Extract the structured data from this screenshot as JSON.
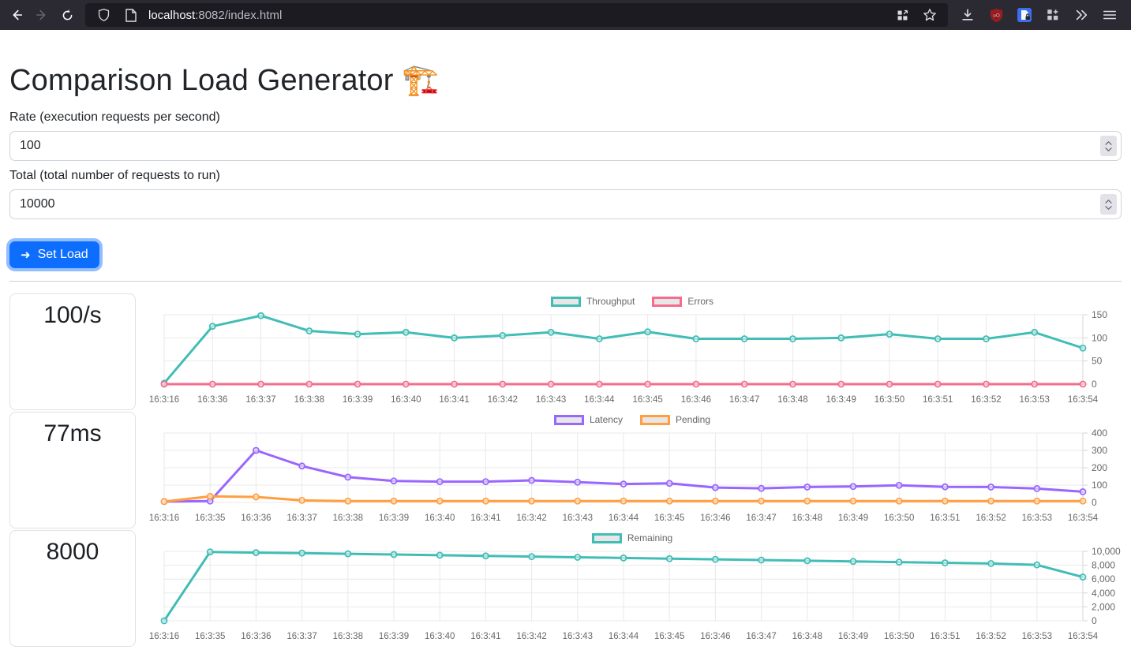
{
  "browser": {
    "url": {
      "host": "localhost",
      "rest": ":8082/index.html"
    }
  },
  "page": {
    "title": "Comparison Load Generator",
    "title_emoji": "🏗️",
    "form": {
      "rate_label": "Rate (execution requests per second)",
      "rate_value": "100",
      "total_label": "Total (total number of requests to run)",
      "total_value": "10000",
      "submit_label": "Set Load",
      "submit_icon": "➜"
    }
  },
  "stats": [
    {
      "value": "100/s"
    },
    {
      "value": "77ms"
    },
    {
      "value": "8000"
    }
  ],
  "chart_data": [
    {
      "type": "line",
      "title": "",
      "legend_position": "top",
      "grid": true,
      "x": [
        "16:3:16",
        "16:3:36",
        "16:3:37",
        "16:3:38",
        "16:3:39",
        "16:3:40",
        "16:3:41",
        "16:3:42",
        "16:3:43",
        "16:3:44",
        "16:3:45",
        "16:3:46",
        "16:3:47",
        "16:3:48",
        "16:3:49",
        "16:3:50",
        "16:3:51",
        "16:3:52",
        "16:3:53",
        "16:3:54"
      ],
      "ylim": [
        0,
        150
      ],
      "yticks": [
        {
          "v": 0,
          "label": "0"
        },
        {
          "v": 50,
          "label": "50"
        },
        {
          "v": 100,
          "label": "100"
        },
        {
          "v": 150,
          "label": "150"
        }
      ],
      "series": [
        {
          "name": "Throughput",
          "color": "#41bdb6",
          "values": [
            2,
            125,
            148,
            115,
            108,
            112,
            100,
            105,
            112,
            98,
            113,
            98,
            98,
            98,
            100,
            108,
            98,
            98,
            112,
            78
          ]
        },
        {
          "name": "Errors",
          "color": "#f56c8d",
          "values": [
            0,
            0,
            0,
            0,
            0,
            0,
            0,
            0,
            0,
            0,
            0,
            0,
            0,
            0,
            0,
            0,
            0,
            0,
            0,
            0
          ]
        }
      ]
    },
    {
      "type": "line",
      "title": "",
      "legend_position": "top",
      "grid": true,
      "x": [
        "16:3:16",
        "16:3:35",
        "16:3:36",
        "16:3:37",
        "16:3:38",
        "16:3:39",
        "16:3:40",
        "16:3:41",
        "16:3:42",
        "16:3:43",
        "16:3:44",
        "16:3:45",
        "16:3:46",
        "16:3:47",
        "16:3:48",
        "16:3:49",
        "16:3:50",
        "16:3:51",
        "16:3:52",
        "16:3:53",
        "16:3:54"
      ],
      "ylim": [
        0,
        400
      ],
      "yticks": [
        {
          "v": 0,
          "label": "0"
        },
        {
          "v": 100,
          "label": "100"
        },
        {
          "v": 200,
          "label": "200"
        },
        {
          "v": 300,
          "label": "300"
        },
        {
          "v": 400,
          "label": "400"
        }
      ],
      "series": [
        {
          "name": "Latency",
          "color": "#9966ff",
          "values": [
            5,
            8,
            300,
            210,
            146,
            124,
            120,
            120,
            127,
            117,
            106,
            110,
            86,
            81,
            89,
            92,
            99,
            90,
            89,
            80,
            62
          ]
        },
        {
          "name": "Pending",
          "color": "#ff9f40",
          "values": [
            5,
            35,
            32,
            12,
            8,
            8,
            8,
            8,
            8,
            8,
            8,
            8,
            8,
            8,
            8,
            8,
            8,
            8,
            8,
            8,
            8
          ]
        }
      ]
    },
    {
      "type": "line",
      "title": "",
      "legend_position": "top",
      "grid": true,
      "x": [
        "16:3:16",
        "16:3:35",
        "16:3:36",
        "16:3:37",
        "16:3:38",
        "16:3:39",
        "16:3:40",
        "16:3:41",
        "16:3:42",
        "16:3:43",
        "16:3:44",
        "16:3:45",
        "16:3:46",
        "16:3:47",
        "16:3:48",
        "16:3:49",
        "16:3:50",
        "16:3:51",
        "16:3:52",
        "16:3:53",
        "16:3:54"
      ],
      "ylim": [
        0,
        10000
      ],
      "yticks": [
        {
          "v": 0,
          "label": "0"
        },
        {
          "v": 2000,
          "label": "2,000"
        },
        {
          "v": 4000,
          "label": "4,000"
        },
        {
          "v": 6000,
          "label": "6,000"
        },
        {
          "v": 8000,
          "label": "8,000"
        },
        {
          "v": 10000,
          "label": "10,000"
        }
      ],
      "series": [
        {
          "name": "Remaining",
          "color": "#41bdb6",
          "values": [
            0,
            9920,
            9820,
            9750,
            9650,
            9550,
            9450,
            9350,
            9250,
            9150,
            9050,
            8950,
            8850,
            8750,
            8650,
            8550,
            8450,
            8350,
            8250,
            8050,
            6300
          ]
        }
      ]
    }
  ]
}
